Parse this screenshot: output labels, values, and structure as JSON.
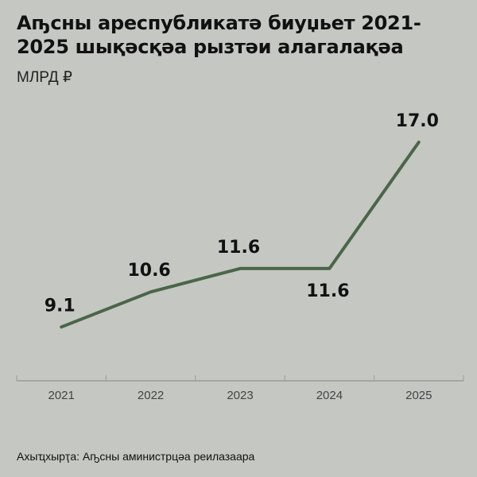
{
  "title": "Аҧсны ареспубликатә биуџьет 2021-2025 шықәсқәа рызтәи алагалақәа",
  "unit": "МЛРД ₽",
  "source": "Ахыҵхырҭа: Аҧсны аминистрцәа реилазаара",
  "chart_data": {
    "type": "line",
    "title": "Аҧсны ареспубликатә биуџьет 2021-2025 шықәсқәа рызтәи алагалақәа",
    "ylabel": "МЛРД ₽",
    "categories": [
      "2021",
      "2022",
      "2023",
      "2024",
      "2025"
    ],
    "values": [
      9.1,
      10.6,
      11.6,
      11.6,
      17.0
    ],
    "data_labels": [
      "9.1",
      "10.6",
      "11.6",
      "11.6",
      "17.0"
    ],
    "ylim": [
      6.8,
      19.0
    ],
    "grid": false,
    "line_color": "#4a6648"
  }
}
